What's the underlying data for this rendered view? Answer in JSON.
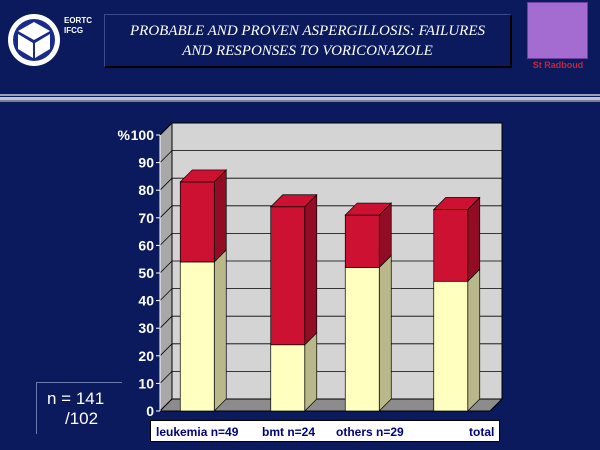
{
  "header": {
    "org_line1": "EORTC",
    "org_line2": "IFCG",
    "title_line1": "PROBABLE AND PROVEN ASPERGILLOSIS: FAILURES",
    "title_line2": "AND RESPONSES TO VORICONAZOLE",
    "institution": "St Radboud"
  },
  "note": {
    "line1": "n = 141",
    "line2": "/102"
  },
  "colors": {
    "background": "#0a1a5c",
    "series_bottom": "#ffffc0",
    "series_top": "#cc1133",
    "plot_bg": "#d4d4d4"
  },
  "chart_data": {
    "type": "bar",
    "stacked": true,
    "three_d": true,
    "categories": [
      "leukemia n=49",
      "bmt n=24",
      "others n=29",
      "total"
    ],
    "series": [
      {
        "values": [
          54,
          24,
          52,
          47
        ]
      },
      {
        "values": [
          29,
          50,
          19,
          26
        ]
      }
    ],
    "ylabel": "%",
    "ylim": [
      0,
      100
    ],
    "yticks": [
      0,
      10,
      20,
      30,
      40,
      50,
      60,
      70,
      80,
      90,
      100
    ],
    "grid": true,
    "legend": "none"
  }
}
